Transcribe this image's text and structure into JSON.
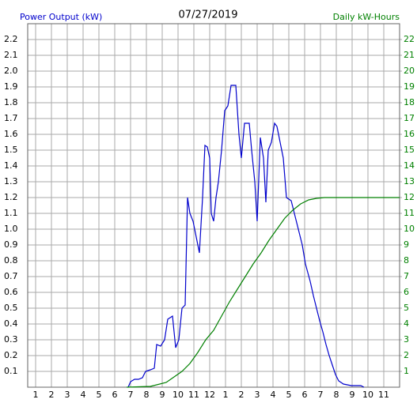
{
  "chart_data": {
    "type": "line",
    "title": "07/27/2019",
    "y_label": "Power Output (kW)",
    "y2_label": "Daily kW-Hours",
    "xlim": [
      0.5,
      24
    ],
    "ylim": [
      0,
      2.3
    ],
    "y2lim": [
      0,
      23
    ],
    "grid": true,
    "xticks": [
      1,
      2,
      3,
      4,
      5,
      6,
      7,
      8,
      9,
      10,
      11,
      12,
      {
        "value": 13,
        "label": "1"
      },
      {
        "value": 14,
        "label": "2"
      },
      {
        "value": 15,
        "label": "3"
      },
      {
        "value": 16,
        "label": "4"
      },
      {
        "value": 17,
        "label": "5"
      },
      {
        "value": 18,
        "label": "6"
      },
      {
        "value": 19,
        "label": "7"
      },
      {
        "value": 20,
        "label": "8"
      },
      {
        "value": 21,
        "label": "9"
      },
      {
        "value": 22,
        "label": "10"
      },
      {
        "value": 23,
        "label": "11"
      }
    ],
    "yticks": [
      0.1,
      0.2,
      0.3,
      0.4,
      0.5,
      0.6,
      0.7,
      0.8,
      0.9,
      {
        "value": 1,
        "label": "1.0"
      },
      1.1,
      1.2,
      1.3,
      1.4,
      1.5,
      1.6,
      1.7,
      1.8,
      1.9,
      {
        "value": 2,
        "label": "2.0"
      },
      2.1,
      2.2
    ],
    "y2ticks": [
      1,
      2,
      3,
      4,
      5,
      6,
      7,
      8,
      9,
      10,
      11,
      12,
      13,
      14,
      15,
      16,
      17,
      18,
      19,
      20,
      21,
      22
    ],
    "series": [
      {
        "name": "Power Output (kW)",
        "color": "#0000cc",
        "x": [
          6.85,
          7.0,
          7.25,
          7.5,
          7.75,
          7.95,
          8.25,
          8.5,
          8.65,
          8.9,
          9.15,
          9.35,
          9.65,
          9.85,
          10.05,
          10.25,
          10.45,
          10.6,
          10.75,
          10.95,
          11.15,
          11.35,
          11.55,
          11.7,
          11.85,
          12.0,
          12.1,
          12.25,
          12.4,
          12.55,
          12.75,
          12.95,
          13.15,
          13.35,
          13.65,
          13.85,
          14.0,
          14.2,
          14.5,
          14.65,
          14.85,
          15.0,
          15.2,
          15.4,
          15.55,
          15.7,
          15.9,
          16.1,
          16.25,
          16.45,
          16.65,
          16.85,
          17.15,
          17.35,
          17.6,
          17.85,
          18.05,
          18.35,
          18.55,
          18.75,
          18.95,
          19.15,
          19.35,
          19.55,
          19.75,
          19.95,
          20.15,
          20.45,
          20.95,
          21.55,
          21.75
        ],
        "values": [
          0,
          0.035,
          0.05,
          0.05,
          0.06,
          0.1,
          0.11,
          0.12,
          0.27,
          0.26,
          0.3,
          0.43,
          0.45,
          0.25,
          0.3,
          0.5,
          0.52,
          1.2,
          1.1,
          1.05,
          0.95,
          0.85,
          1.2,
          1.53,
          1.52,
          1.45,
          1.1,
          1.05,
          1.2,
          1.3,
          1.5,
          1.75,
          1.78,
          1.91,
          1.91,
          1.6,
          1.45,
          1.67,
          1.67,
          1.5,
          1.3,
          1.05,
          1.58,
          1.45,
          1.17,
          1.5,
          1.55,
          1.67,
          1.65,
          1.55,
          1.45,
          1.2,
          1.18,
          1.1,
          1.0,
          0.9,
          0.78,
          0.67,
          0.58,
          0.5,
          0.42,
          0.35,
          0.27,
          0.2,
          0.14,
          0.08,
          0.04,
          0.02,
          0.01,
          0.01,
          0
        ]
      },
      {
        "name": "Daily kW-Hours",
        "color": "#008000",
        "axis": "y2",
        "x": [
          6.75,
          8.25,
          9.25,
          10.25,
          10.75,
          11.25,
          11.75,
          12.25,
          12.75,
          13.25,
          13.75,
          14.25,
          14.75,
          15.25,
          15.75,
          16.25,
          16.75,
          17.25,
          17.75,
          18.25,
          18.75,
          19.25,
          24
        ],
        "values": [
          0,
          0.05,
          0.3,
          1.0,
          1.5,
          2.2,
          3.0,
          3.6,
          4.5,
          5.4,
          6.2,
          7.0,
          7.8,
          8.5,
          9.3,
          10.0,
          10.7,
          11.2,
          11.6,
          11.85,
          11.95,
          12.0,
          12.0
        ]
      }
    ]
  }
}
